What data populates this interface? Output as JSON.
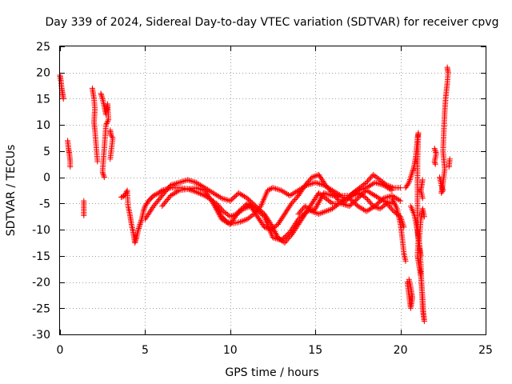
{
  "chart_data": {
    "type": "scatter",
    "title": "Day 339 of 2024, Sidereal Day-to-day VTEC variation (SDTVAR) for receiver cpvg",
    "xlabel": "GPS time / hours",
    "ylabel": "SDTVAR / TECUs",
    "xlim": [
      0,
      25
    ],
    "ylim": [
      -30,
      25
    ],
    "xticks": [
      0,
      5,
      10,
      15,
      20,
      25
    ],
    "yticks": [
      -30,
      -25,
      -20,
      -15,
      -10,
      -5,
      0,
      5,
      10,
      15,
      20,
      25
    ],
    "grid": true,
    "marker": "+",
    "color": "#ff0000",
    "series": [
      {
        "name": "SDTVAR",
        "segments": [
          [
            [
              0.0,
              19.5
            ],
            [
              0.05,
              18.5
            ],
            [
              0.1,
              17.0
            ],
            [
              0.15,
              16.0
            ],
            [
              0.2,
              15.0
            ]
          ],
          [
            [
              0.45,
              7.0
            ],
            [
              0.5,
              5.5
            ],
            [
              0.55,
              4.5
            ],
            [
              0.6,
              3.0
            ],
            [
              0.6,
              2.0
            ]
          ],
          [
            [
              1.4,
              -4.5
            ],
            [
              1.4,
              -7.3
            ]
          ],
          [
            [
              1.9,
              17.0
            ],
            [
              2.0,
              15.0
            ],
            [
              2.05,
              13.0
            ],
            [
              2.0,
              10.5
            ],
            [
              2.05,
              9.0
            ],
            [
              2.1,
              7.0
            ],
            [
              2.15,
              5.0
            ],
            [
              2.2,
              3.0
            ]
          ],
          [
            [
              2.4,
              16.0
            ],
            [
              2.5,
              15.0
            ],
            [
              2.6,
              13.5
            ],
            [
              2.7,
              12.0
            ],
            [
              2.8,
              14.0
            ],
            [
              2.85,
              11.0
            ],
            [
              2.7,
              10.0
            ],
            [
              2.5,
              1.0
            ],
            [
              2.6,
              0.0
            ]
          ],
          [
            [
              2.95,
              9.0
            ],
            [
              3.0,
              8.0
            ],
            [
              3.1,
              7.5
            ],
            [
              2.95,
              3.5
            ]
          ],
          [
            [
              3.6,
              -3.8
            ],
            [
              3.8,
              -3.5
            ],
            [
              3.95,
              -2.5
            ],
            [
              4.0,
              -5.5
            ],
            [
              4.1,
              -7.0
            ],
            [
              4.2,
              -9.0
            ],
            [
              4.3,
              -10.5
            ],
            [
              4.4,
              -12.5
            ],
            [
              4.5,
              -11.5
            ],
            [
              4.6,
              -10.0
            ],
            [
              4.7,
              -9.0
            ],
            [
              4.8,
              -8.0
            ],
            [
              4.9,
              -6.5
            ],
            [
              5.0,
              -5.5
            ],
            [
              5.2,
              -4.5
            ],
            [
              5.5,
              -3.5
            ],
            [
              5.8,
              -3.0
            ],
            [
              6.0,
              -2.5
            ],
            [
              6.5,
              -2.0
            ],
            [
              7.0,
              -2.0
            ],
            [
              7.5,
              -2.2
            ],
            [
              8.0,
              -2.8
            ],
            [
              8.5,
              -3.5
            ],
            [
              9.0,
              -4.5
            ],
            [
              9.3,
              -6.0
            ],
            [
              9.5,
              -7.5
            ],
            [
              9.8,
              -8.5
            ],
            [
              10.2,
              -8.8
            ],
            [
              10.6,
              -8.5
            ],
            [
              11.0,
              -8.0
            ],
            [
              11.4,
              -7.0
            ],
            [
              11.8,
              -5.5
            ],
            [
              12.0,
              -4.0
            ],
            [
              12.2,
              -2.5
            ],
            [
              12.5,
              -2.0
            ],
            [
              13.0,
              -2.5
            ],
            [
              13.5,
              -3.5
            ],
            [
              14.0,
              -2.5
            ],
            [
              14.5,
              -1.5
            ],
            [
              15.0,
              -1.0
            ],
            [
              15.5,
              -1.5
            ],
            [
              16.0,
              -2.5
            ],
            [
              16.5,
              -3.5
            ],
            [
              17.0,
              -3.5
            ],
            [
              17.5,
              -2.5
            ],
            [
              18.0,
              -2.0
            ],
            [
              18.5,
              -1.0
            ],
            [
              19.0,
              -1.5
            ],
            [
              19.5,
              -2.5
            ]
          ],
          [
            [
              5.0,
              -8.0
            ],
            [
              5.5,
              -5.5
            ],
            [
              6.0,
              -3.5
            ],
            [
              6.5,
              -1.5
            ],
            [
              7.0,
              -1.0
            ],
            [
              7.5,
              -0.5
            ],
            [
              8.0,
              -1.0
            ],
            [
              8.5,
              -2.0
            ],
            [
              9.0,
              -3.0
            ],
            [
              9.5,
              -4.0
            ],
            [
              10.0,
              -4.5
            ],
            [
              10.5,
              -3.0
            ],
            [
              11.0,
              -4.0
            ],
            [
              11.5,
              -5.5
            ],
            [
              12.0,
              -7.0
            ],
            [
              12.4,
              -9.0
            ],
            [
              12.8,
              -11.5
            ],
            [
              13.2,
              -12.5
            ],
            [
              13.6,
              -11.0
            ],
            [
              14.0,
              -9.0
            ],
            [
              14.4,
              -7.0
            ],
            [
              14.8,
              -5.0
            ],
            [
              15.2,
              -3.0
            ],
            [
              15.6,
              -4.0
            ],
            [
              16.0,
              -5.0
            ],
            [
              16.5,
              -5.0
            ],
            [
              17.0,
              -5.5
            ],
            [
              17.5,
              -4.0
            ],
            [
              18.0,
              -2.5
            ],
            [
              18.5,
              -3.5
            ],
            [
              19.0,
              -4.5
            ],
            [
              19.5,
              -5.0
            ]
          ],
          [
            [
              6.0,
              -5.5
            ],
            [
              6.5,
              -3.5
            ],
            [
              7.0,
              -2.5
            ],
            [
              8.0,
              -2.0
            ],
            [
              8.5,
              -2.5
            ],
            [
              9.0,
              -5.0
            ],
            [
              9.5,
              -8.0
            ],
            [
              10.0,
              -9.0
            ],
            [
              10.5,
              -6.5
            ],
            [
              11.0,
              -5.0
            ],
            [
              11.5,
              -6.0
            ],
            [
              12.0,
              -7.5
            ],
            [
              12.5,
              -11.5
            ],
            [
              13.0,
              -12.0
            ],
            [
              13.5,
              -10.5
            ],
            [
              14.0,
              -8.0
            ],
            [
              14.5,
              -6.5
            ],
            [
              15.0,
              -6.0
            ],
            [
              15.5,
              -3.0
            ],
            [
              16.0,
              -3.5
            ],
            [
              17.0,
              -4.0
            ],
            [
              17.5,
              -5.5
            ],
            [
              18.0,
              -6.5
            ],
            [
              18.5,
              -5.5
            ],
            [
              19.0,
              -4.0
            ],
            [
              19.5,
              -3.5
            ],
            [
              20.0,
              -4.5
            ]
          ],
          [
            [
              9.2,
              -5.0
            ],
            [
              9.6,
              -6.5
            ],
            [
              10.0,
              -7.5
            ],
            [
              10.4,
              -7.0
            ],
            [
              10.8,
              -6.0
            ],
            [
              11.2,
              -5.5
            ],
            [
              11.6,
              -7.5
            ],
            [
              12.0,
              -9.5
            ],
            [
              12.4,
              -10.0
            ],
            [
              12.8,
              -9.0
            ],
            [
              13.2,
              -7.0
            ],
            [
              13.6,
              -5.0
            ],
            [
              14.0,
              -3.5
            ],
            [
              14.4,
              -1.5
            ],
            [
              14.8,
              0.0
            ],
            [
              15.2,
              0.5
            ],
            [
              15.6,
              -1.5
            ],
            [
              16.0,
              -3.0
            ],
            [
              16.4,
              -4.5
            ],
            [
              16.8,
              -4.5
            ],
            [
              17.2,
              -3.0
            ],
            [
              17.6,
              -2.0
            ],
            [
              18.0,
              -1.0
            ],
            [
              18.4,
              0.5
            ],
            [
              18.8,
              -0.5
            ],
            [
              19.2,
              -1.5
            ],
            [
              19.6,
              -2.0
            ],
            [
              20.0,
              -2.0
            ]
          ],
          [
            [
              14.0,
              -7.0
            ],
            [
              14.4,
              -5.5
            ],
            [
              14.8,
              -6.5
            ],
            [
              15.2,
              -7.0
            ],
            [
              15.6,
              -6.5
            ],
            [
              16.0,
              -6.0
            ],
            [
              16.4,
              -5.0
            ],
            [
              16.8,
              -4.0
            ],
            [
              17.2,
              -3.5
            ],
            [
              17.6,
              -3.0
            ],
            [
              18.0,
              -4.0
            ],
            [
              18.4,
              -5.5
            ],
            [
              18.8,
              -6.0
            ],
            [
              19.2,
              -5.0
            ],
            [
              19.6,
              -6.5
            ],
            [
              20.0,
              -7.5
            ],
            [
              20.2,
              -9.5
            ]
          ],
          [
            [
              19.5,
              -4.0
            ],
            [
              19.8,
              -6.0
            ],
            [
              20.0,
              -9.0
            ],
            [
              20.1,
              -11.5
            ],
            [
              20.2,
              -14.5
            ],
            [
              20.3,
              -16.0
            ]
          ],
          [
            [
              20.4,
              -20.0
            ],
            [
              20.5,
              -22.5
            ],
            [
              20.6,
              -25.0
            ],
            [
              20.7,
              -23.0
            ],
            [
              20.6,
              -21.0
            ],
            [
              20.5,
              -19.5
            ]
          ],
          [
            [
              20.3,
              -2.0
            ],
            [
              20.5,
              -1.0
            ],
            [
              20.7,
              1.0
            ],
            [
              20.8,
              2.0
            ],
            [
              20.9,
              4.0
            ],
            [
              21.0,
              7.5
            ],
            [
              21.05,
              8.5
            ],
            [
              21.0,
              3.0
            ],
            [
              21.0,
              -3.0
            ],
            [
              21.0,
              -9.0
            ],
            [
              21.05,
              -12.0
            ],
            [
              21.0,
              -15.0
            ],
            [
              21.1,
              -17.0
            ],
            [
              21.2,
              -19.0
            ],
            [
              21.25,
              -21.0
            ],
            [
              21.3,
              -23.0
            ],
            [
              21.35,
              -26.0
            ],
            [
              21.4,
              -27.5
            ],
            [
              21.3,
              -25.0
            ],
            [
              21.2,
              -17.0
            ],
            [
              21.1,
              -12.0
            ],
            [
              21.2,
              -8.0
            ],
            [
              21.3,
              -6.0
            ],
            [
              21.4,
              -7.5
            ]
          ],
          [
            [
              20.6,
              -5.5
            ],
            [
              20.8,
              -7.0
            ],
            [
              20.9,
              -8.5
            ],
            [
              21.0,
              -10.5
            ],
            [
              21.1,
              -13.0
            ],
            [
              21.2,
              -15.0
            ]
          ],
          [
            [
              21.3,
              -0.5
            ],
            [
              21.2,
              -2.5
            ],
            [
              21.3,
              -4.0
            ]
          ],
          [
            [
              22.0,
              5.5
            ],
            [
              22.1,
              4.5
            ],
            [
              22.0,
              3.0
            ],
            [
              22.05,
              2.5
            ]
          ],
          [
            [
              22.3,
              0.0
            ],
            [
              22.4,
              -1.5
            ],
            [
              22.5,
              -2.5
            ],
            [
              22.4,
              -3.0
            ],
            [
              22.5,
              -1.0
            ],
            [
              22.6,
              1.5
            ],
            [
              22.5,
              5.0
            ],
            [
              22.55,
              9.0
            ],
            [
              22.6,
              12.5
            ],
            [
              22.65,
              15.0
            ],
            [
              22.7,
              16.5
            ],
            [
              22.75,
              18.0
            ],
            [
              22.8,
              20.0
            ],
            [
              22.75,
              21.0
            ]
          ],
          [
            [
              22.9,
              3.5
            ],
            [
              22.85,
              2.0
            ]
          ]
        ]
      }
    ]
  }
}
